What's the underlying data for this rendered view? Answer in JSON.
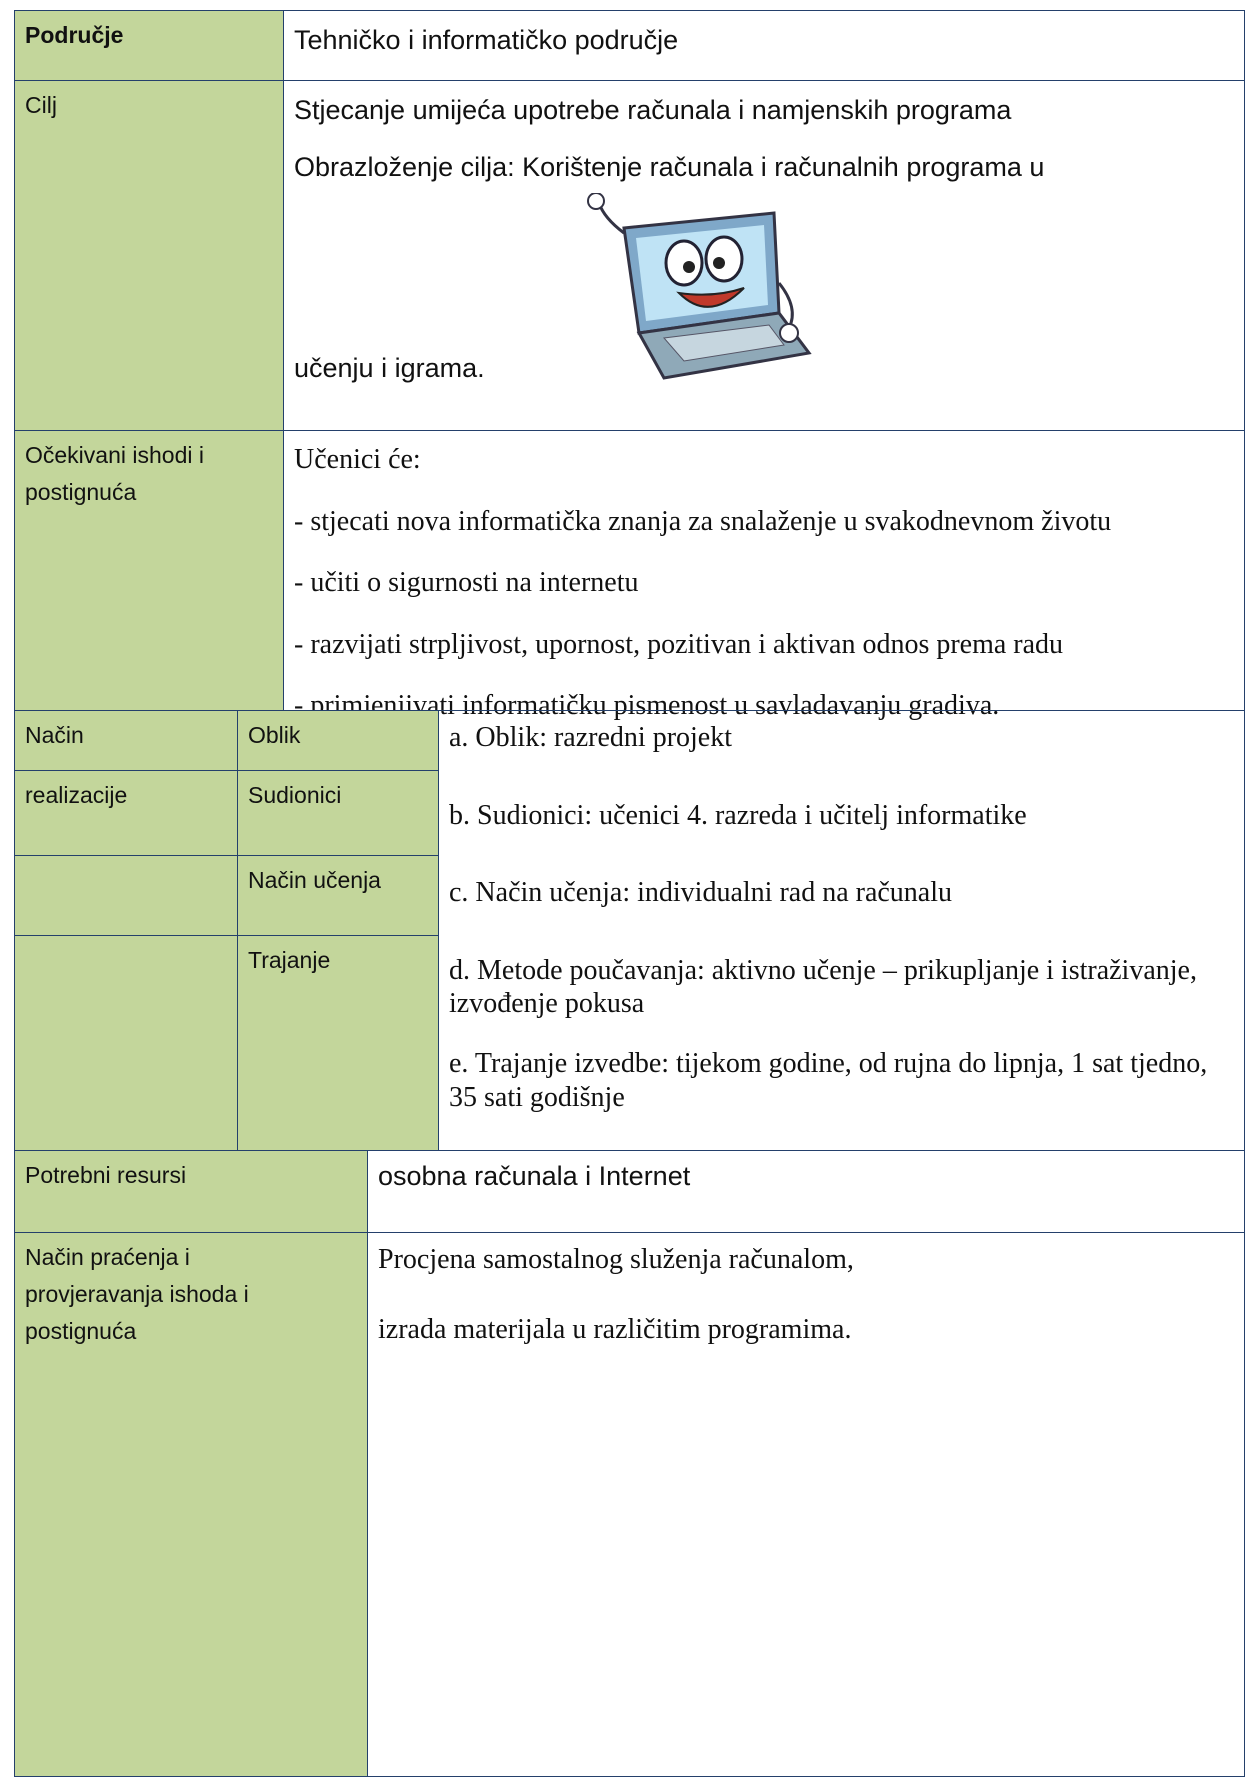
{
  "area": {
    "label": "Područje",
    "value": "Tehničko i informatičko područje"
  },
  "goal": {
    "label": "Cilj",
    "value": "Stjecanje umijeća upotrebe računala i namjenskih programa",
    "explanation_start": "Obrazloženje cilja: Korištenje računala i računalnih programa u",
    "explanation_end": "učenju i igrama."
  },
  "outcomes": {
    "label": "Očekivani ishodi i postignuća",
    "intro": "Učenici će:",
    "items": [
      "- stjecati nova informatička znanja za snalaženje u svakodnevnom životu",
      "- učiti o sigurnosti na internetu",
      "- razvijati strpljivost, upornost, pozitivan i aktivan odnos prema radu",
      "- primjenjivati informatičku pismenost u savladavanju gradiva."
    ]
  },
  "realization": {
    "label": [
      "Način",
      "realizacije"
    ],
    "aspects": [
      "Oblik",
      "Sudionici",
      "Način učenja",
      "Trajanje"
    ],
    "details": [
      "a. Oblik: razredni projekt",
      "b. Sudionici: učenici 4. razreda i učitelj informatike",
      "c. Način učenja: individualni rad na računalu",
      "d. Metode poučavanja: aktivno učenje – prikupljanje i istraživanje, izvođenje pokusa",
      "e. Trajanje izvedbe: tijekom godine, od rujna do lipnja, 1 sat tjedno, 35 sati godišnje"
    ]
  },
  "resources": {
    "label": "Potrebni resursi",
    "value": "osobna računala i Internet"
  },
  "monitoring": {
    "label": "Način praćenja i provjeravanja ishoda i postignuća",
    "lines": [
      "Procjena samostalnog služenja računalom,",
      "izrada materijala u različitim programima."
    ]
  }
}
